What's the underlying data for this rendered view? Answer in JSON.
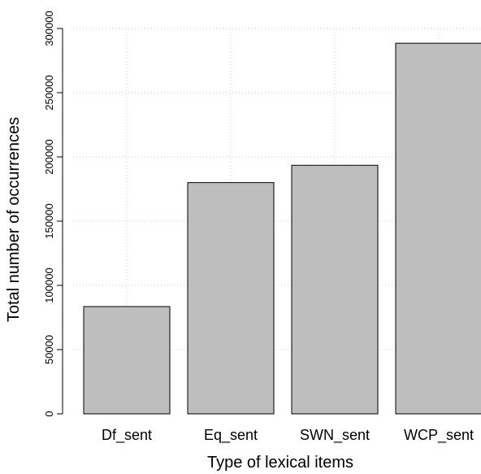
{
  "chart_data": {
    "type": "bar",
    "categories": [
      "Df_sent",
      "Eq_sent",
      "SWN_sent",
      "WCP_sent"
    ],
    "values": [
      83500,
      180000,
      193500,
      288500
    ],
    "xlabel": "Type of lexical items",
    "ylabel": "Total number of occurrences",
    "ylim": [
      0,
      300000
    ],
    "yticks": [
      0,
      50000,
      100000,
      150000,
      200000,
      250000,
      300000
    ],
    "grid": true,
    "legend": "none",
    "colors": {
      "bar_fill": "#bebebe",
      "bar_stroke": "#000000",
      "grid": "#d3d3d3"
    }
  }
}
